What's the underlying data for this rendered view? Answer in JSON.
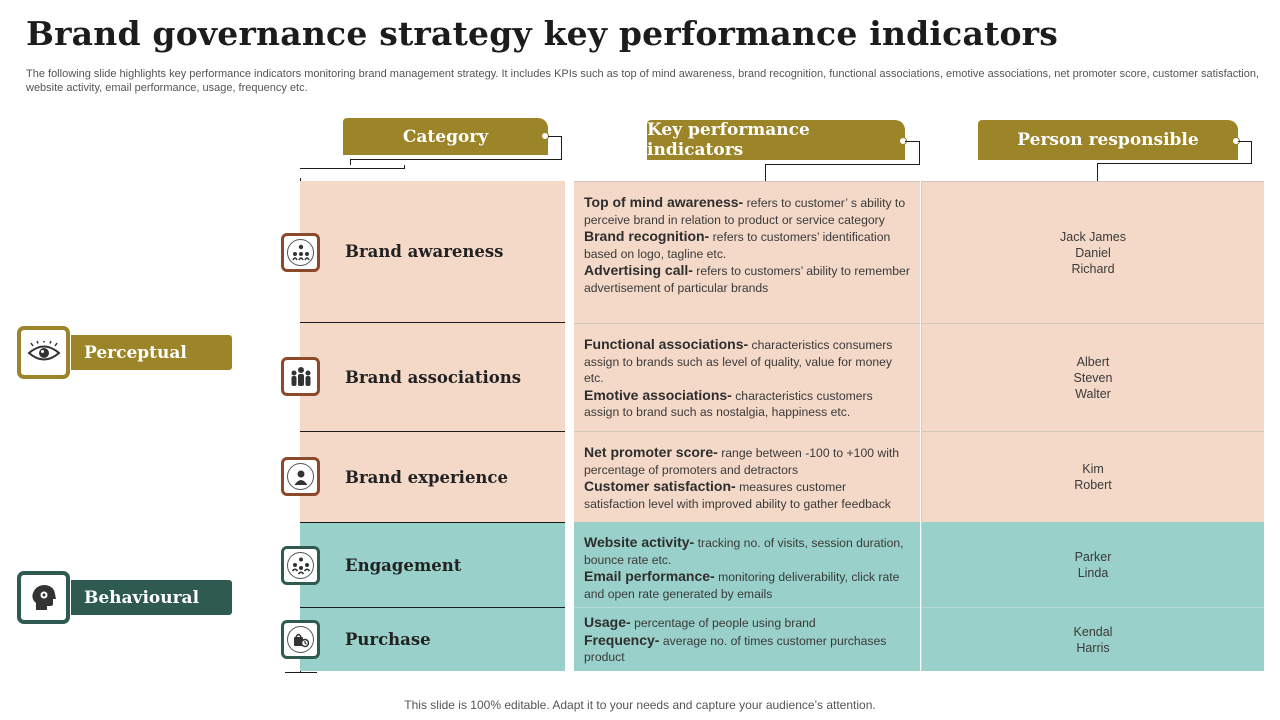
{
  "title": "Brand governance strategy key performance indicators",
  "subtitle": "The following slide highlights key performance indicators monitoring brand management strategy. It includes KPIs such as top of mind awareness, brand recognition, functional associations, emotive associations, net promoter score, customer satisfaction, website activity,  email performance, usage, frequency etc.",
  "headers": {
    "category": "Category",
    "kpi": "Key performance indicators",
    "person": "Person responsible"
  },
  "groups": {
    "perceptual": {
      "label": "Perceptual",
      "icon": "eye-icon"
    },
    "behavioural": {
      "label": "Behavioural",
      "icon": "head-gear-icon"
    }
  },
  "rows": [
    {
      "category": "Brand awareness",
      "icon": "people-network-icon",
      "kpis": [
        {
          "term": "Top of mind awareness-",
          "desc": " refers to customer’ s ability to perceive  brand  in relation to product or service category"
        },
        {
          "term": "Brand recognition-",
          "desc": " refers  to customers’ identification based on logo, tagline etc."
        },
        {
          "term": "Advertising call-",
          "desc": " refers to customers’ ability to remember advertisement  of particular brands"
        }
      ],
      "persons": [
        "Jack James",
        "Daniel",
        "Richard"
      ]
    },
    {
      "category": "Brand associations",
      "icon": "group-icon",
      "kpis": [
        {
          "term": "Functional associations-",
          "desc": " characteristics consumers assign to brands  such as level  of quality, value for money etc."
        },
        {
          "term": "Emotive associations-",
          "desc": " characteristics customers assign to brand such as nostalgia, happiness etc."
        }
      ],
      "persons": [
        "Albert",
        "Steven",
        "Walter"
      ]
    },
    {
      "category": "Brand experience",
      "icon": "user-badge-icon",
      "kpis": [
        {
          "term": "Net promoter score-",
          "desc": " range between  -100 to +100 with percentage  of promoters and detractors"
        },
        {
          "term": "Customer satisfaction-",
          "desc": "  measures customer satisfaction level  with improved   ability to gather feedback"
        }
      ],
      "persons": [
        "Kim",
        "Robert"
      ]
    },
    {
      "category": "Engagement",
      "icon": "team-connect-icon",
      "kpis": [
        {
          "term": "Website activity-",
          "desc": " tracking no. of visits, session duration, bounce rate etc."
        },
        {
          "term": "Email performance-",
          "desc": " monitoring deliverability,  click rate and open rate generated  by emails"
        }
      ],
      "persons": [
        "Parker",
        "Linda"
      ]
    },
    {
      "category": "Purchase",
      "icon": "purchase-icon",
      "kpis": [
        {
          "term": "Usage-",
          "desc": " percentage of people using brand"
        },
        {
          "term": "Frequency-",
          "desc": " average  no. of times customer purchases product"
        }
      ],
      "persons": [
        "Kendal",
        "Harris"
      ]
    }
  ],
  "footer": "This slide is 100% editable. Adapt it to your needs and capture your audience’s attention.",
  "colors": {
    "gold": "#9c8428",
    "peach": "#f4d9c8",
    "teal": "#99d0c9",
    "dark_green": "#2f5a50",
    "brown": "#8b4b2a"
  }
}
